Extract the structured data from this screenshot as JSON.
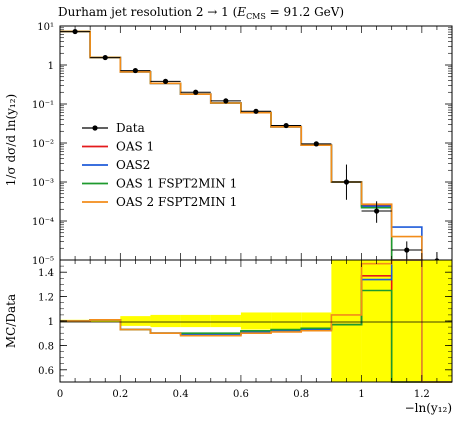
{
  "chart_data": {
    "type": "line",
    "title": "Durham jet resolution 2 → 1 (E_CMS = 91.2 GeV)",
    "title_parts": {
      "main": "Durham jet resolution 2 → 1 (",
      "e": "E",
      "e_sub": "CMS",
      "rest": " = 91.2 GeV)"
    },
    "xlabel": "−ln(y₁₂)",
    "ylabel": "1/σ dσ/d ln(y₁₂)",
    "ratio_ylabel": "MC/Data",
    "x_edges": [
      0.0,
      0.1,
      0.2,
      0.3,
      0.4,
      0.5,
      0.6,
      0.7,
      0.8,
      0.9,
      1.0,
      1.1,
      1.2,
      1.3
    ],
    "xlim": [
      0,
      1.3
    ],
    "main_ylim": [
      1e-05,
      10
    ],
    "main_yscale": "log",
    "ratio_ylim": [
      0.5,
      1.5
    ],
    "x_ticks": [
      "0",
      "0.2",
      "0.4",
      "0.6",
      "0.8",
      "1",
      "1.2"
    ],
    "main_y_ticks": [
      "10¹",
      "1",
      "10⁻¹",
      "10⁻²",
      "10⁻³",
      "10⁻⁴",
      "10⁻⁵"
    ],
    "ratio_y_ticks": [
      "0.6",
      "0.8",
      "1",
      "1.2",
      "1.4"
    ],
    "legend_position": "left-center",
    "data": {
      "name": "Data",
      "color": "#000000",
      "x": [
        0.05,
        0.15,
        0.25,
        0.35,
        0.45,
        0.55,
        0.65,
        0.75,
        0.85,
        0.95,
        1.05,
        1.15,
        1.25
      ],
      "y": [
        7.2,
        1.55,
        0.72,
        0.38,
        0.2,
        0.12,
        0.065,
        0.028,
        0.0095,
        0.001,
        0.00018,
        1.8e-05,
        9.5e-06
      ],
      "err_lo": [
        6.9,
        1.45,
        0.67,
        0.35,
        0.185,
        0.11,
        0.06,
        0.026,
        0.0088,
        0.00035,
        9e-05,
        9e-06,
        4e-06
      ],
      "err_hi": [
        7.5,
        1.65,
        0.77,
        0.41,
        0.215,
        0.13,
        0.07,
        0.03,
        0.0102,
        0.0028,
        0.00032,
        3e-05,
        1.6e-05
      ]
    },
    "series": [
      {
        "name": "OAS 1",
        "color": "#e41a1c",
        "values": [
          7.25,
          1.56,
          0.67,
          0.34,
          0.178,
          0.106,
          0.06,
          0.026,
          0.0088,
          0.001,
          0.00025,
          9e-06,
          9e-06
        ],
        "ratio": [
          1.0,
          1.01,
          0.93,
          0.9,
          0.89,
          0.89,
          0.91,
          0.92,
          0.93,
          0.97,
          1.37,
          0.5,
          0.5
        ]
      },
      {
        "name": "OAS2",
        "color": "#1f5bd9",
        "values": [
          7.25,
          1.56,
          0.67,
          0.34,
          0.178,
          0.106,
          0.06,
          0.026,
          0.0088,
          0.001,
          0.00024,
          7e-05,
          9e-06
        ],
        "ratio": [
          1.0,
          1.01,
          0.93,
          0.9,
          0.89,
          0.89,
          0.91,
          0.92,
          0.93,
          0.97,
          1.34,
          3.8,
          0.5
        ]
      },
      {
        "name": "OAS 1 FSPT2MIN 1",
        "color": "#1e9a2e",
        "values": [
          7.25,
          1.56,
          0.67,
          0.34,
          0.178,
          0.106,
          0.06,
          0.026,
          0.0088,
          0.001,
          0.00022,
          9e-06,
          9e-06
        ],
        "ratio": [
          1.0,
          1.01,
          0.93,
          0.9,
          0.9,
          0.9,
          0.92,
          0.93,
          0.94,
          0.97,
          1.25,
          0.5,
          0.5
        ]
      },
      {
        "name": "OAS 2 FSPT2MIN 1",
        "color": "#f28c1a",
        "values": [
          7.25,
          1.56,
          0.67,
          0.34,
          0.178,
          0.106,
          0.06,
          0.026,
          0.0088,
          0.001,
          0.00027,
          4e-05,
          9e-06
        ],
        "ratio": [
          1.0,
          1.01,
          0.93,
          0.9,
          0.88,
          0.88,
          0.9,
          0.91,
          0.92,
          1.05,
          1.47,
          2.2,
          0.5
        ]
      }
    ],
    "uncertainty_band": {
      "color": "#ffff00",
      "lo": [
        0.99,
        0.99,
        0.96,
        0.95,
        0.95,
        0.95,
        0.93,
        0.93,
        0.93,
        0.5,
        0.5,
        0.5,
        0.5
      ],
      "hi": [
        1.01,
        1.01,
        1.04,
        1.05,
        1.05,
        1.05,
        1.07,
        1.07,
        1.07,
        1.5,
        1.5,
        1.5,
        1.5
      ]
    }
  }
}
